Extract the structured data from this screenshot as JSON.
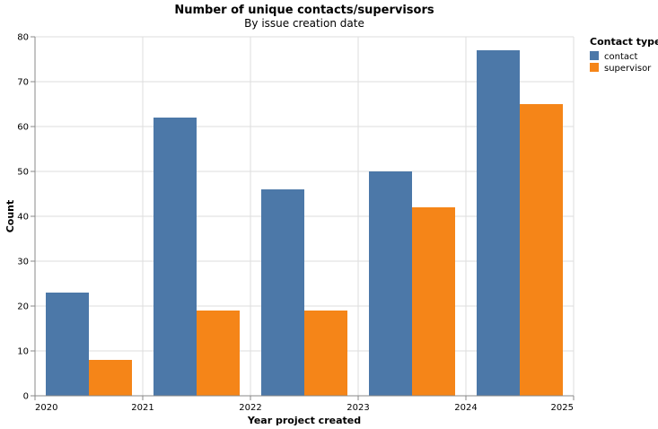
{
  "chart_data": {
    "type": "bar",
    "title": "Number of unique contacts/supervisors",
    "subtitle": "By issue creation date",
    "xlabel": "Year project created",
    "ylabel": "Count",
    "x_ticks": [
      "2020",
      "2021",
      "2022",
      "2023",
      "2024",
      "2025"
    ],
    "categories": [
      "2020",
      "2021",
      "2022",
      "2023",
      "2024"
    ],
    "ylim": [
      0,
      80
    ],
    "y_ticks": [
      0,
      10,
      20,
      30,
      40,
      50,
      60,
      70,
      80
    ],
    "grid": true,
    "legend_title": "Contact type",
    "legend_position": "right",
    "series": [
      {
        "name": "contact",
        "color": "#4c78a8",
        "values": [
          23,
          62,
          46,
          50,
          77
        ]
      },
      {
        "name": "supervisor",
        "color": "#f58518",
        "values": [
          8,
          19,
          19,
          42,
          65
        ]
      }
    ]
  }
}
